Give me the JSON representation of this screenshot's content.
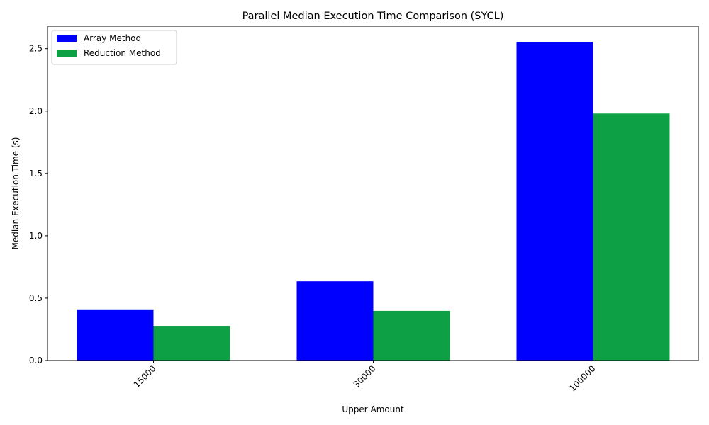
{
  "chart_data": {
    "type": "bar",
    "title": "Parallel Median Execution Time Comparison (SYCL)",
    "xlabel": "Upper Amount",
    "ylabel": "Median Execution Time (s)",
    "categories": [
      "15000",
      "30000",
      "100000"
    ],
    "series": [
      {
        "name": "Array Method",
        "values": [
          0.41,
          0.635,
          2.555
        ],
        "color": "#0000ff"
      },
      {
        "name": "Reduction Method",
        "values": [
          0.278,
          0.398,
          1.98
        ],
        "color": "#0ea045"
      }
    ],
    "ylim": [
      0,
      2.68
    ],
    "yticks": [
      0.0,
      0.5,
      1.0,
      1.5,
      2.0,
      2.5
    ],
    "ytick_labels": [
      "0.0",
      "0.5",
      "1.0",
      "1.5",
      "2.0",
      "2.5"
    ],
    "xtick_rotation": "45 degrees",
    "legend_position": "top-left",
    "grid": false
  }
}
